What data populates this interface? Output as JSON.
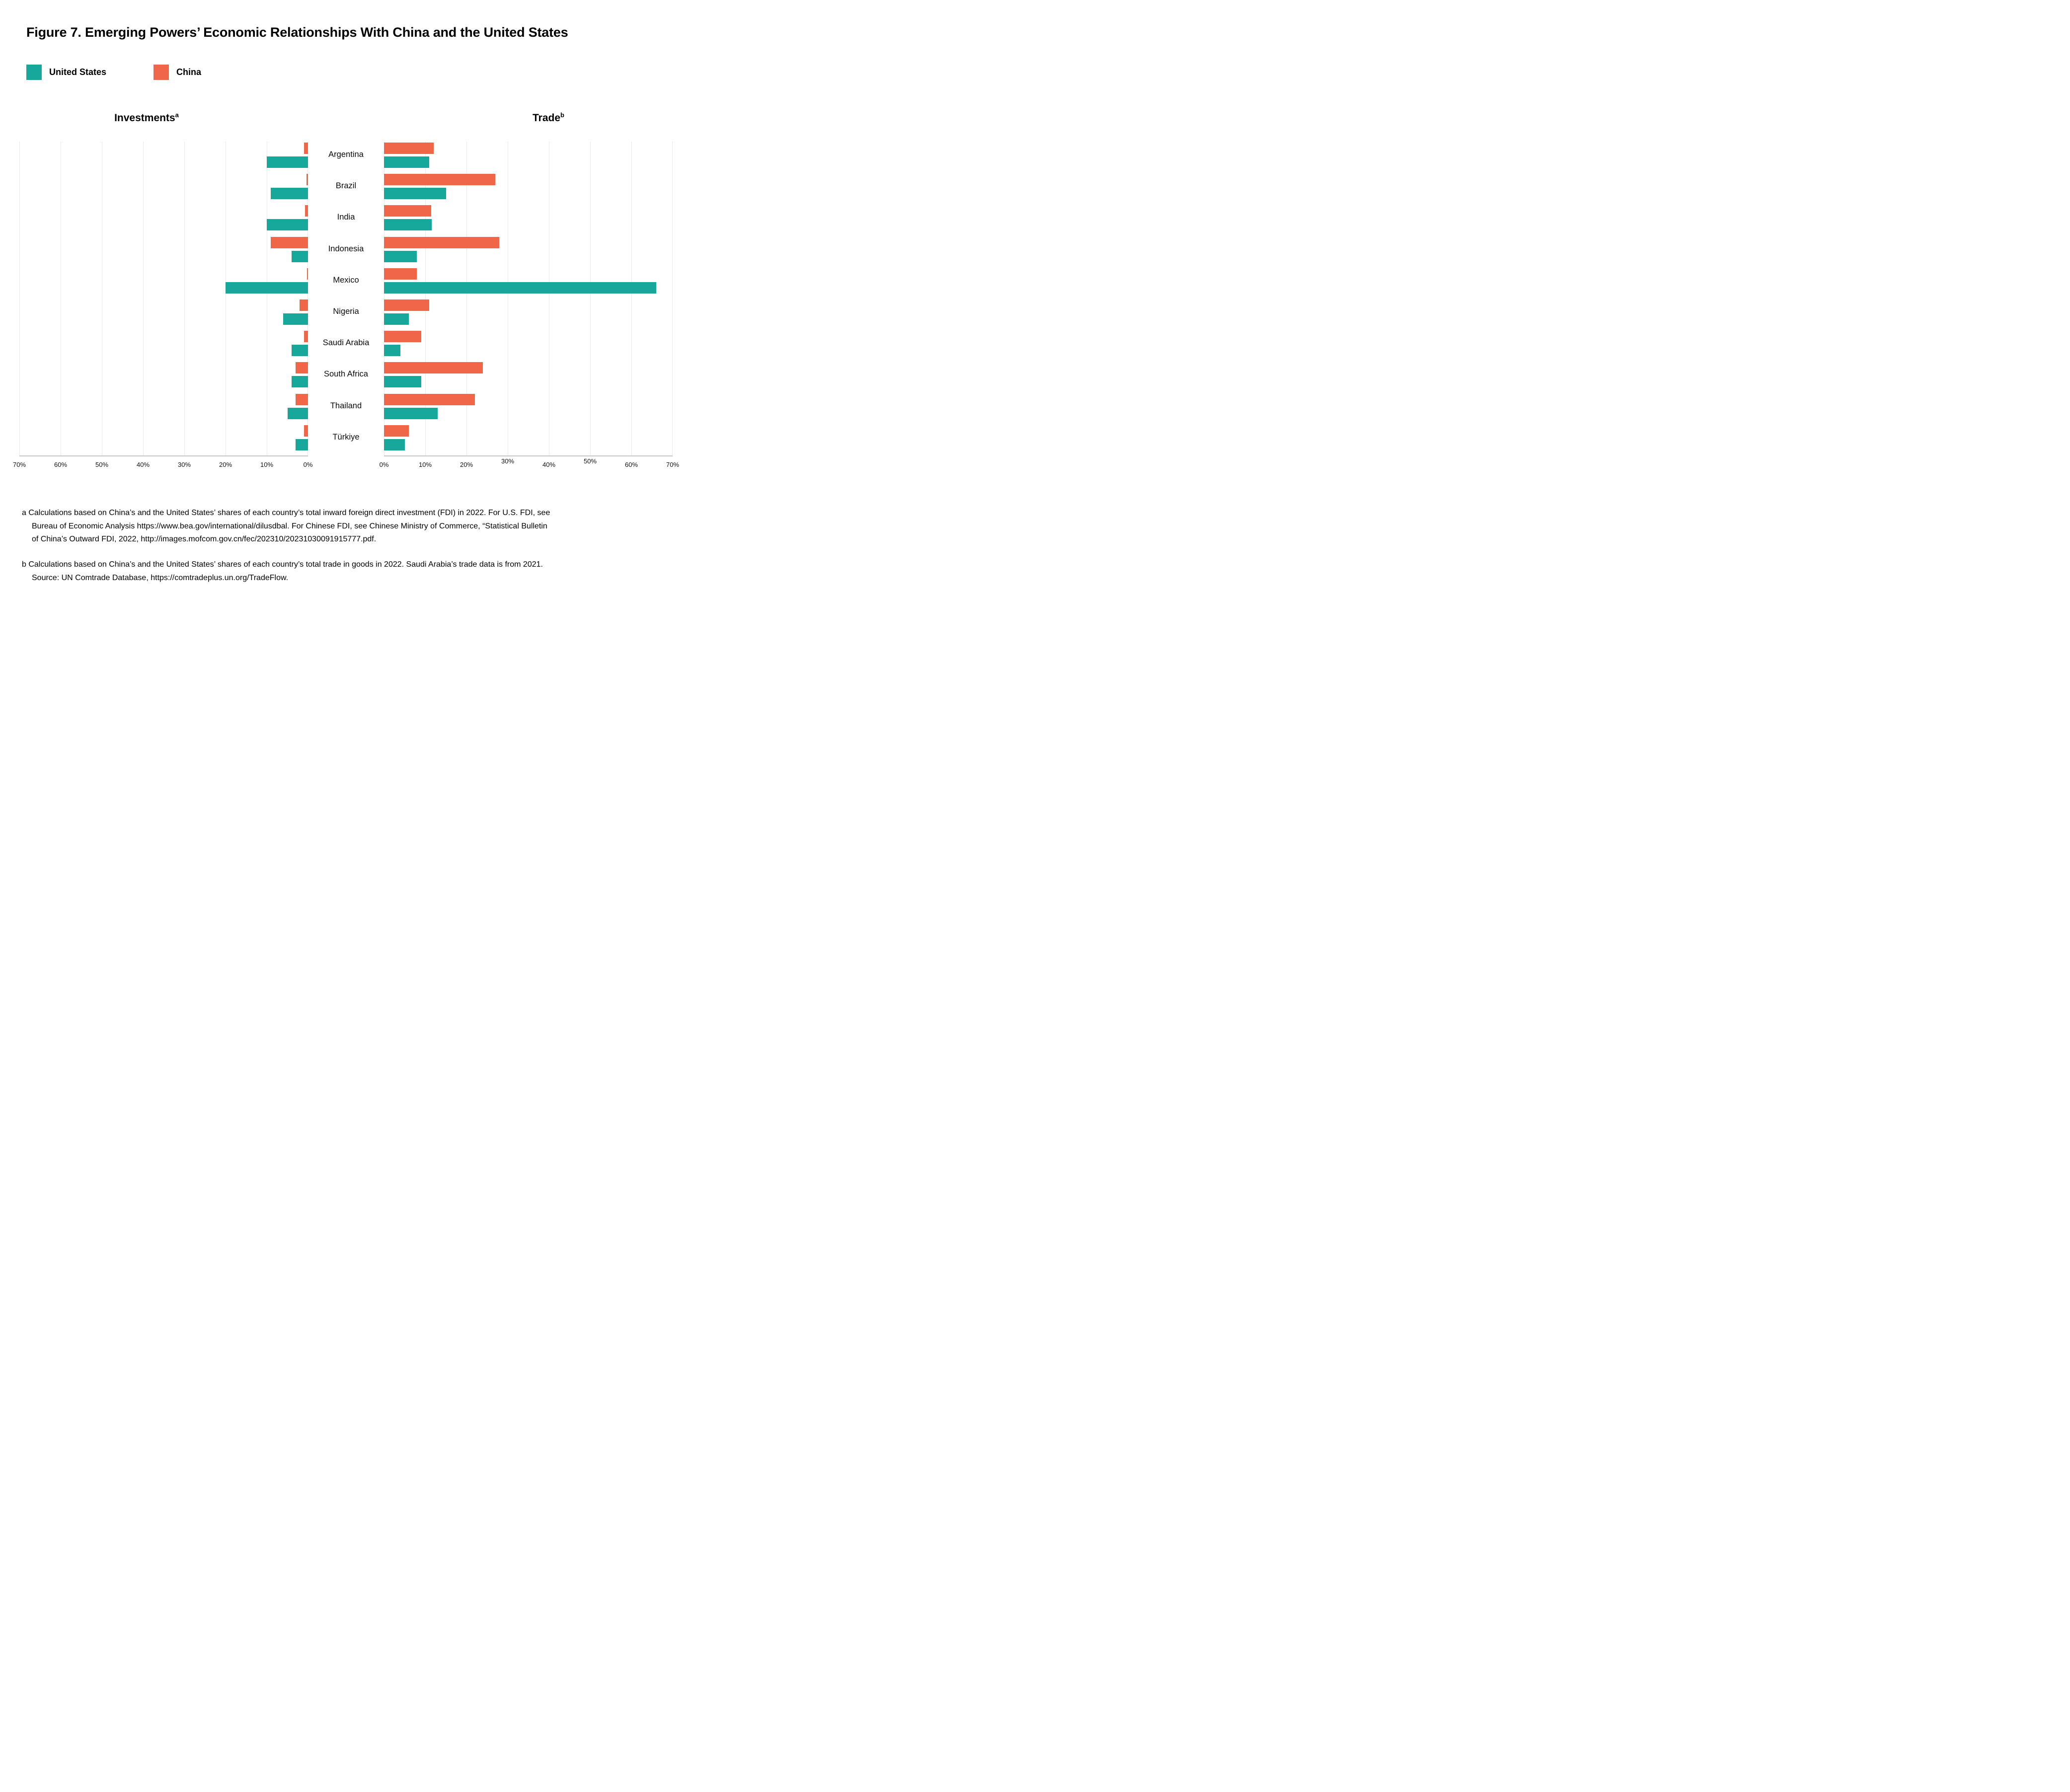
{
  "title": "Figure 7. Emerging Powers’ Economic Relationships With China and the United States",
  "legend": [
    {
      "label": "United States",
      "color": "#17A89B"
    },
    {
      "label": "China",
      "color": "#F06648"
    }
  ],
  "headers": {
    "left": {
      "label": "Investments",
      "mark": "a"
    },
    "right": {
      "label": "Trade",
      "mark": "b"
    }
  },
  "chart_data": {
    "type": "bar",
    "orientation": "horizontal-mirrored",
    "units": "percent",
    "grid": true,
    "legend_position": "top-left",
    "categories": [
      "Argentina",
      "Brazil",
      "India",
      "Indonesia",
      "Mexico",
      "Nigeria",
      "Saudi Arabia",
      "South Africa",
      "Thailand",
      "Türkiye"
    ],
    "panels": [
      {
        "key": "investments",
        "title": "Investments",
        "footnote_mark": "a",
        "direction": "left",
        "axis_max": 70,
        "axis_ticks_percent": [
          70,
          60,
          50,
          40,
          30,
          20,
          10,
          0
        ],
        "raised_tick_labels": [],
        "series": [
          {
            "name": "China",
            "values": [
              1,
              0.4,
              0.7,
              9,
              0.2,
              2,
              1,
              3,
              3,
              1
            ]
          },
          {
            "name": "United States",
            "values": [
              10,
              9,
              10,
              4,
              20,
              6,
              4,
              4,
              5,
              3
            ]
          }
        ]
      },
      {
        "key": "trade",
        "title": "Trade",
        "footnote_mark": "b",
        "direction": "right",
        "axis_max": 70,
        "axis_ticks_percent": [
          0,
          10,
          20,
          30,
          40,
          50,
          60,
          70
        ],
        "raised_tick_labels": [
          30,
          50
        ],
        "series": [
          {
            "name": "China",
            "values": [
              12,
              27,
              11.4,
              28,
              8,
              11,
              9,
              24,
              22,
              6
            ]
          },
          {
            "name": "United States",
            "values": [
              11,
              15,
              11.6,
              8,
              66,
              6,
              4,
              9,
              13,
              5
            ]
          }
        ]
      }
    ]
  },
  "footnotes": [
    {
      "id": "a",
      "lines": [
        "a Calculations based on China’s and the United States’ shares of each country’s total inward foreign direct investment (FDI) in 2022. For U.S. FDI, see",
        "Bureau of Economic Analysis https://www.bea.gov/international/dilusdbal. For Chinese FDI, see Chinese Ministry of Commerce, “Statistical Bulletin",
        "of China’s Outward FDI, 2022, http://images.mofcom.gov.cn/fec/202310/20231030091915777.pdf."
      ]
    },
    {
      "id": "b",
      "lines": [
        "b Calculations based on China’s and the United States’ shares of each country’s total trade in goods in 2022. Saudi Arabia’s trade data is from 2021.",
        "Source: UN Comtrade Database, https://comtradeplus.un.org/TradeFlow."
      ]
    }
  ]
}
